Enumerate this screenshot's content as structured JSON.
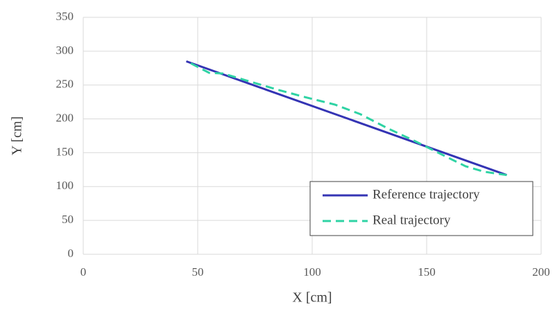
{
  "chart_data": {
    "type": "line",
    "x_label": "X [cm]",
    "y_label": "Y [cm]",
    "xlim": [
      0,
      200
    ],
    "ylim": [
      0,
      350
    ],
    "xticks": [
      0,
      50,
      100,
      150,
      200
    ],
    "yticks": [
      0,
      50,
      100,
      150,
      200,
      250,
      300,
      350
    ],
    "grid": true,
    "legend": "lower right",
    "series": [
      {
        "name": "Reference trajectory",
        "color": "#3434b4",
        "linestyle": "solid",
        "x": [
          45,
          185
        ],
        "values": [
          285,
          117
        ]
      },
      {
        "name": "Real trajectory",
        "color": "#2fd3a4",
        "linestyle": "dashed",
        "x": [
          47,
          55,
          61,
          70,
          85,
          97,
          110,
          121,
          133,
          145,
          158,
          167,
          175,
          185
        ],
        "values": [
          282,
          268,
          267,
          258,
          243,
          232,
          221,
          207,
          186,
          167,
          145,
          130,
          122,
          117
        ]
      }
    ]
  }
}
